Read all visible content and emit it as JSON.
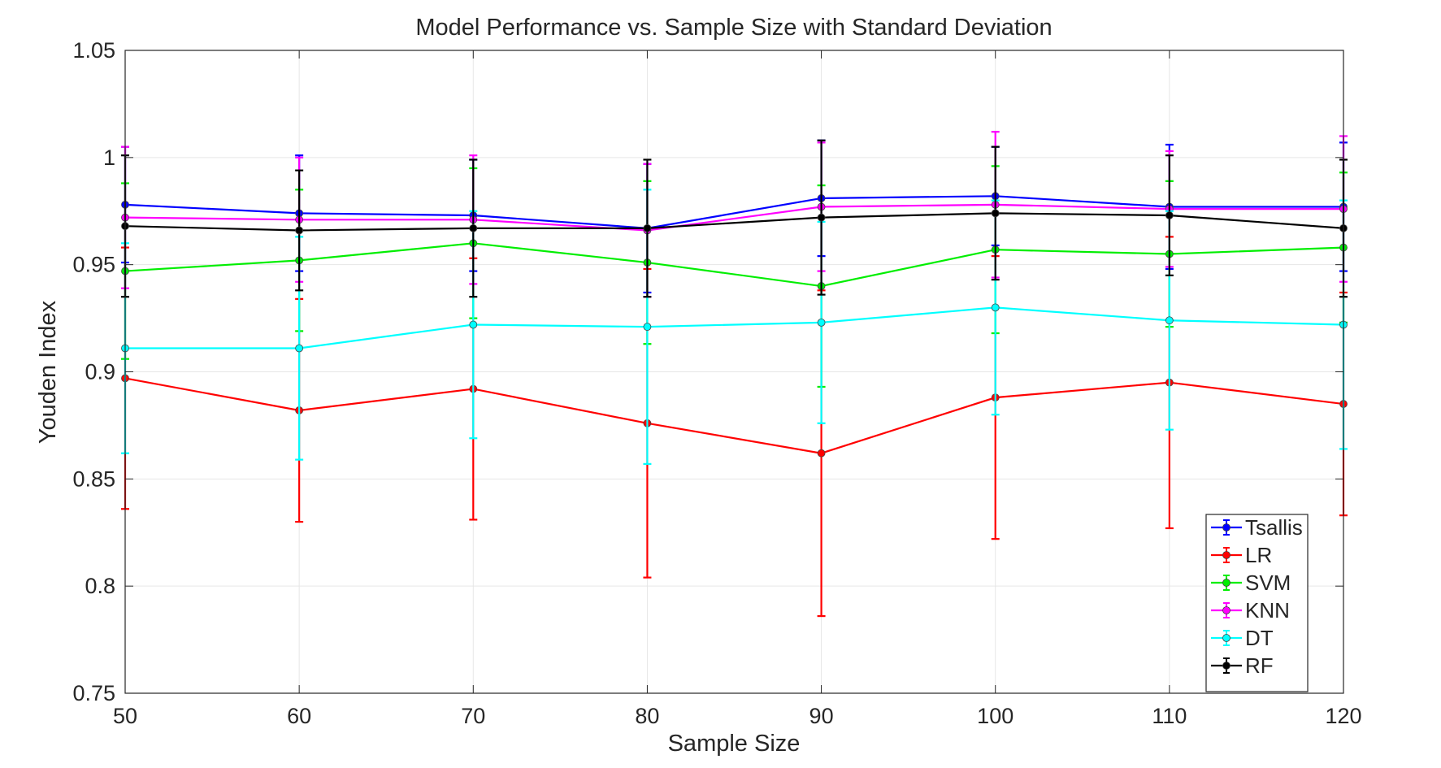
{
  "chart_data": {
    "type": "line",
    "title": "Model Performance vs. Sample Size with Standard Deviation",
    "xlabel": "Sample Size",
    "ylabel": "Youden Index",
    "xlim": [
      50,
      120
    ],
    "ylim": [
      0.75,
      1.05
    ],
    "x": [
      50,
      60,
      70,
      80,
      90,
      100,
      110,
      120
    ],
    "xticks": [
      "50",
      "60",
      "70",
      "80",
      "90",
      "100",
      "110",
      "120"
    ],
    "yticks": [
      "0.75",
      "0.8",
      "0.85",
      "0.9",
      "0.95",
      "1",
      "1.05"
    ],
    "grid": true,
    "legend_position": "bottom-right",
    "series": [
      {
        "name": "Tsallis",
        "color": "#0000ff",
        "values": [
          0.978,
          0.974,
          0.973,
          0.967,
          0.981,
          0.982,
          0.977,
          0.977
        ],
        "std": [
          0.027,
          0.027,
          0.026,
          0.03,
          0.027,
          0.023,
          0.029,
          0.03
        ]
      },
      {
        "name": "LR",
        "color": "#ff0000",
        "values": [
          0.897,
          0.882,
          0.892,
          0.876,
          0.862,
          0.888,
          0.895,
          0.885
        ],
        "std": [
          0.061,
          0.052,
          0.061,
          0.072,
          0.076,
          0.066,
          0.068,
          0.052
        ]
      },
      {
        "name": "SVM",
        "color": "#00ee00",
        "values": [
          0.947,
          0.952,
          0.96,
          0.951,
          0.94,
          0.957,
          0.955,
          0.958
        ],
        "std": [
          0.041,
          0.033,
          0.035,
          0.038,
          0.047,
          0.039,
          0.034,
          0.035
        ]
      },
      {
        "name": "KNN",
        "color": "#ff00ff",
        "values": [
          0.972,
          0.971,
          0.971,
          0.966,
          0.977,
          0.978,
          0.976,
          0.976
        ],
        "std": [
          0.033,
          0.029,
          0.03,
          0.031,
          0.03,
          0.034,
          0.027,
          0.034
        ]
      },
      {
        "name": "DT",
        "color": "#00ffff",
        "values": [
          0.911,
          0.911,
          0.922,
          0.921,
          0.923,
          0.93,
          0.924,
          0.922
        ],
        "std": [
          0.049,
          0.052,
          0.053,
          0.064,
          0.047,
          0.05,
          0.051,
          0.058
        ]
      },
      {
        "name": "RF",
        "color": "#000000",
        "values": [
          0.968,
          0.966,
          0.967,
          0.967,
          0.972,
          0.974,
          0.973,
          0.967
        ],
        "std": [
          0.033,
          0.028,
          0.032,
          0.032,
          0.036,
          0.031,
          0.028,
          0.032
        ]
      }
    ]
  }
}
